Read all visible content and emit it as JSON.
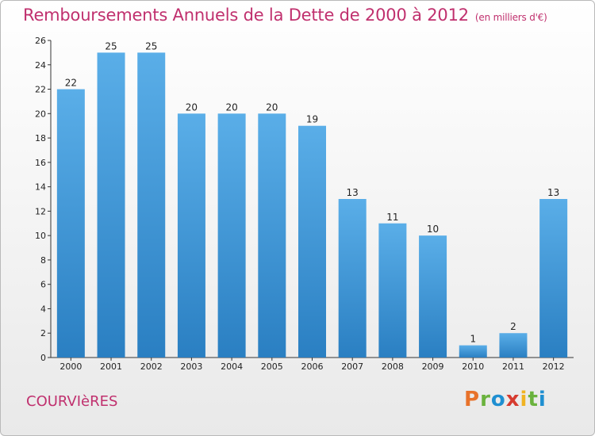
{
  "header": {
    "title": "Remboursements Annuels de la Dette de 2000 à 2012",
    "unit": "(en milliers d'€)"
  },
  "footer": {
    "commune": "COURVIèRES",
    "logo_letters": [
      "P",
      "r",
      "o",
      "x",
      "i",
      "t",
      "i"
    ]
  },
  "colors": {
    "title": "#c0306e",
    "bar_top": "#5aaee8",
    "bar_bottom": "#2a7fc2",
    "logo": [
      "#e8722a",
      "#6ab23d",
      "#1f8fd1",
      "#d63b2f",
      "#f0b323",
      "#6ab23d",
      "#1f8fd1"
    ]
  },
  "chart_data": {
    "type": "bar",
    "title": "Remboursements Annuels de la Dette de 2000 à 2012",
    "xlabel": "",
    "ylabel": "",
    "categories": [
      "2000",
      "2001",
      "2002",
      "2003",
      "2004",
      "2005",
      "2006",
      "2007",
      "2008",
      "2009",
      "2010",
      "2011",
      "2012"
    ],
    "values": [
      22,
      25,
      25,
      20,
      20,
      20,
      19,
      13,
      11,
      10,
      1,
      2,
      13
    ],
    "ylim": [
      0,
      26
    ],
    "yticks": [
      0,
      2,
      4,
      6,
      8,
      10,
      12,
      14,
      16,
      18,
      20,
      22,
      24,
      26
    ],
    "grid": false,
    "legend": "none"
  }
}
